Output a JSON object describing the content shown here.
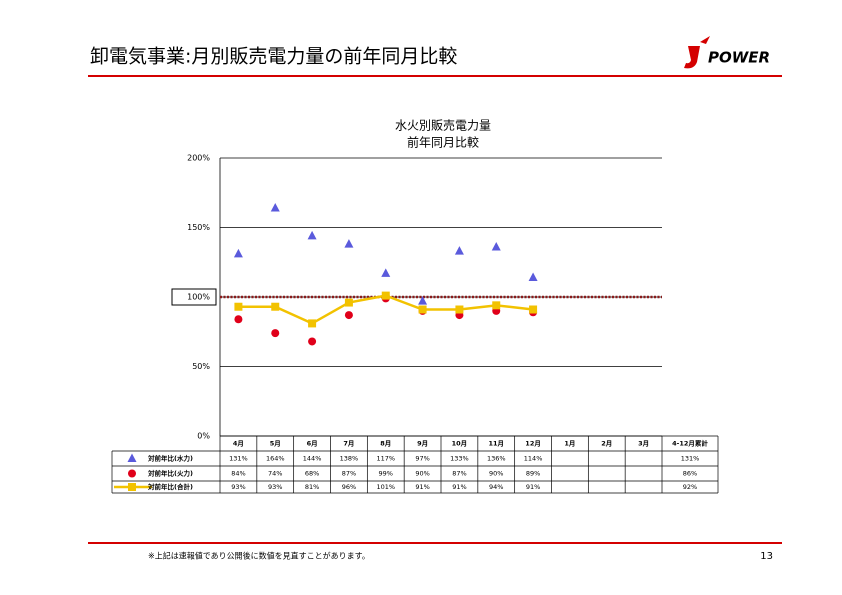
{
  "header": {
    "title": "卸電気事業:月別販売電力量の前年同月比較",
    "logo": "POWER"
  },
  "chart_data": {
    "type": "line",
    "title": "水火別販売電力量",
    "subtitle": "前年同月比較",
    "categories": [
      "4月",
      "5月",
      "6月",
      "7月",
      "8月",
      "9月",
      "10月",
      "11月",
      "12月",
      "1月",
      "2月",
      "3月"
    ],
    "cumulative_header": "4-12月累計",
    "ylim": [
      0,
      200
    ],
    "yticks": [
      {
        "value": 0,
        "label": "0%"
      },
      {
        "value": 50,
        "label": "50%"
      },
      {
        "value": 100,
        "label": "100%"
      },
      {
        "value": 150,
        "label": "150%"
      },
      {
        "value": 200,
        "label": "200%"
      }
    ],
    "grid": true,
    "reference_line": {
      "value": 100,
      "color": "#8b1a1a"
    },
    "series": [
      {
        "name": "対前年比(水力)",
        "color": "#5a5adc",
        "marker": "triangle",
        "line": false,
        "values": [
          131,
          164,
          144,
          138,
          117,
          97,
          133,
          136,
          114,
          null,
          null,
          null
        ],
        "value_labels": [
          "131%",
          "164%",
          "144%",
          "138%",
          "117%",
          "97%",
          "133%",
          "136%",
          "114%",
          null,
          null,
          null
        ],
        "cumulative": 131,
        "cumulative_label": "131%"
      },
      {
        "name": "対前年比(火力)",
        "color": "#e0001a",
        "marker": "circle",
        "line": false,
        "values": [
          84,
          74,
          68,
          87,
          99,
          90,
          87,
          90,
          89,
          null,
          null,
          null
        ],
        "value_labels": [
          "84%",
          "74%",
          "68%",
          "87%",
          "99%",
          "90%",
          "87%",
          "90%",
          "89%",
          null,
          null,
          null
        ],
        "cumulative": 86,
        "cumulative_label": "86%"
      },
      {
        "name": "対前年比(合計)",
        "color": "#f2c200",
        "marker": "square",
        "line": true,
        "values": [
          93,
          93,
          81,
          96,
          101,
          91,
          91,
          94,
          91,
          null,
          null,
          null
        ],
        "value_labels": [
          "93%",
          "93%",
          "81%",
          "96%",
          "101%",
          "91%",
          "91%",
          "94%",
          "91%",
          null,
          null,
          null
        ],
        "cumulative": 92,
        "cumulative_label": "92%"
      }
    ]
  },
  "footer": {
    "note": "※上記は速報値であり公開後に数値を見直すことがあります。",
    "page": "13"
  }
}
